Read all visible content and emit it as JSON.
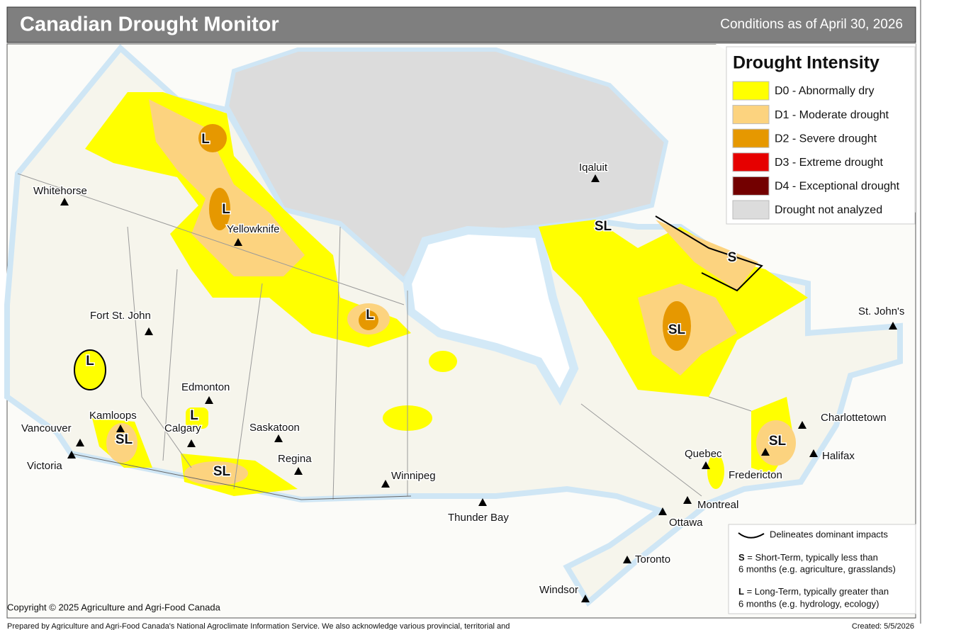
{
  "header": {
    "title": "Canadian Drought Monitor",
    "conditions": "Conditions as of April 30, 2026"
  },
  "legend": {
    "title": "Drought Intensity",
    "items": [
      {
        "label": "D0 - Abnormally dry",
        "color": "#ffff00"
      },
      {
        "label": "D1 - Moderate drought",
        "color": "#fcd37f"
      },
      {
        "label": "D2 - Severe drought",
        "color": "#e69800"
      },
      {
        "label": "D3 - Extreme drought",
        "color": "#e60000"
      },
      {
        "label": "D4 - Exceptional drought",
        "color": "#730000"
      },
      {
        "label": "Drought not analyzed",
        "color": "#dcdcdc"
      }
    ]
  },
  "impacts_legend": {
    "line": "Delineates dominant impacts",
    "short": {
      "letter": "S",
      "text": "= Short-Term, typically less than",
      "text2": "6 months (e.g. agriculture, grasslands)"
    },
    "long": {
      "letter": "L",
      "text": "= Long-Term, typically greater  than",
      "text2": "6 months (e.g. hydrology, ecology)"
    }
  },
  "cities": [
    "Whitehorse",
    "Yellowknife",
    "Iqaluit",
    "Fort St. John",
    "Edmonton",
    "Kamloops",
    "Calgary",
    "Vancouver",
    "Victoria",
    "Saskatoon",
    "Regina",
    "Winnipeg",
    "Thunder Bay",
    "Quebec",
    "Fredericton",
    "Charlottetown",
    "Halifax",
    "Montreal",
    "Ottawa",
    "Toronto",
    "Windsor",
    "St. John's"
  ],
  "impact_labels": [
    "L",
    "L",
    "L",
    "L",
    "L",
    "SL",
    "SL",
    "SL",
    "S",
    "SL",
    "SL"
  ],
  "footer": {
    "copyright": "Copyright © 2025 Agriculture and Agri-Food Canada",
    "prepared": "Prepared by Agriculture and Agri-Food Canada's National Agroclimate Information Service.  We also acknowledge various provincial, territorial and",
    "created": "Created: 5/5/2026"
  }
}
